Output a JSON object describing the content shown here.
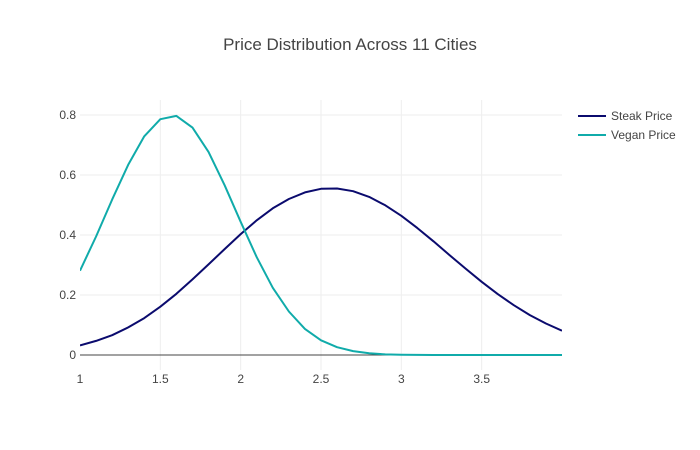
{
  "chart_data": {
    "type": "line",
    "title": "Price Distribution Across 11 Cities",
    "xlabel": "",
    "ylabel": "",
    "xlim": [
      1,
      4
    ],
    "ylim": [
      -0.05,
      0.85
    ],
    "grid": true,
    "legend_position": "top-right",
    "x_ticks": [
      1,
      1.5,
      2,
      2.5,
      3,
      3.5
    ],
    "x_tick_labels": [
      "1",
      "1.5",
      "2",
      "2.5",
      "3",
      "3.5"
    ],
    "y_ticks": [
      0,
      0.2,
      0.4,
      0.6,
      0.8
    ],
    "y_tick_labels": [
      "0",
      "0.2",
      "0.4",
      "0.6",
      "0.8"
    ],
    "x": [
      1.0,
      1.1,
      1.2,
      1.3,
      1.4,
      1.5,
      1.6,
      1.7,
      1.8,
      1.9,
      2.0,
      2.1,
      2.2,
      2.3,
      2.4,
      2.5,
      2.6,
      2.7,
      2.8,
      2.9,
      3.0,
      3.1,
      3.2,
      3.3,
      3.4,
      3.5,
      3.6,
      3.7,
      3.8,
      3.9,
      4.0
    ],
    "series": [
      {
        "name": "Steak Price",
        "color": "#0b0b6e",
        "values": [
          0.032,
          0.047,
          0.066,
          0.092,
          0.123,
          0.161,
          0.204,
          0.252,
          0.302,
          0.353,
          0.403,
          0.449,
          0.489,
          0.52,
          0.542,
          0.554,
          0.555,
          0.546,
          0.527,
          0.499,
          0.464,
          0.423,
          0.379,
          0.333,
          0.288,
          0.244,
          0.203,
          0.166,
          0.133,
          0.105,
          0.081
        ]
      },
      {
        "name": "Vegan Price",
        "color": "#10abaa",
        "values": [
          0.281,
          0.395,
          0.518,
          0.634,
          0.729,
          0.786,
          0.797,
          0.758,
          0.677,
          0.566,
          0.444,
          0.326,
          0.224,
          0.145,
          0.087,
          0.049,
          0.026,
          0.013,
          0.006,
          0.002,
          0.001,
          0.0004,
          0.0001,
          0.0,
          0.0,
          0.0,
          0.0,
          0.0,
          0.0,
          0.0,
          0.0
        ]
      }
    ]
  }
}
